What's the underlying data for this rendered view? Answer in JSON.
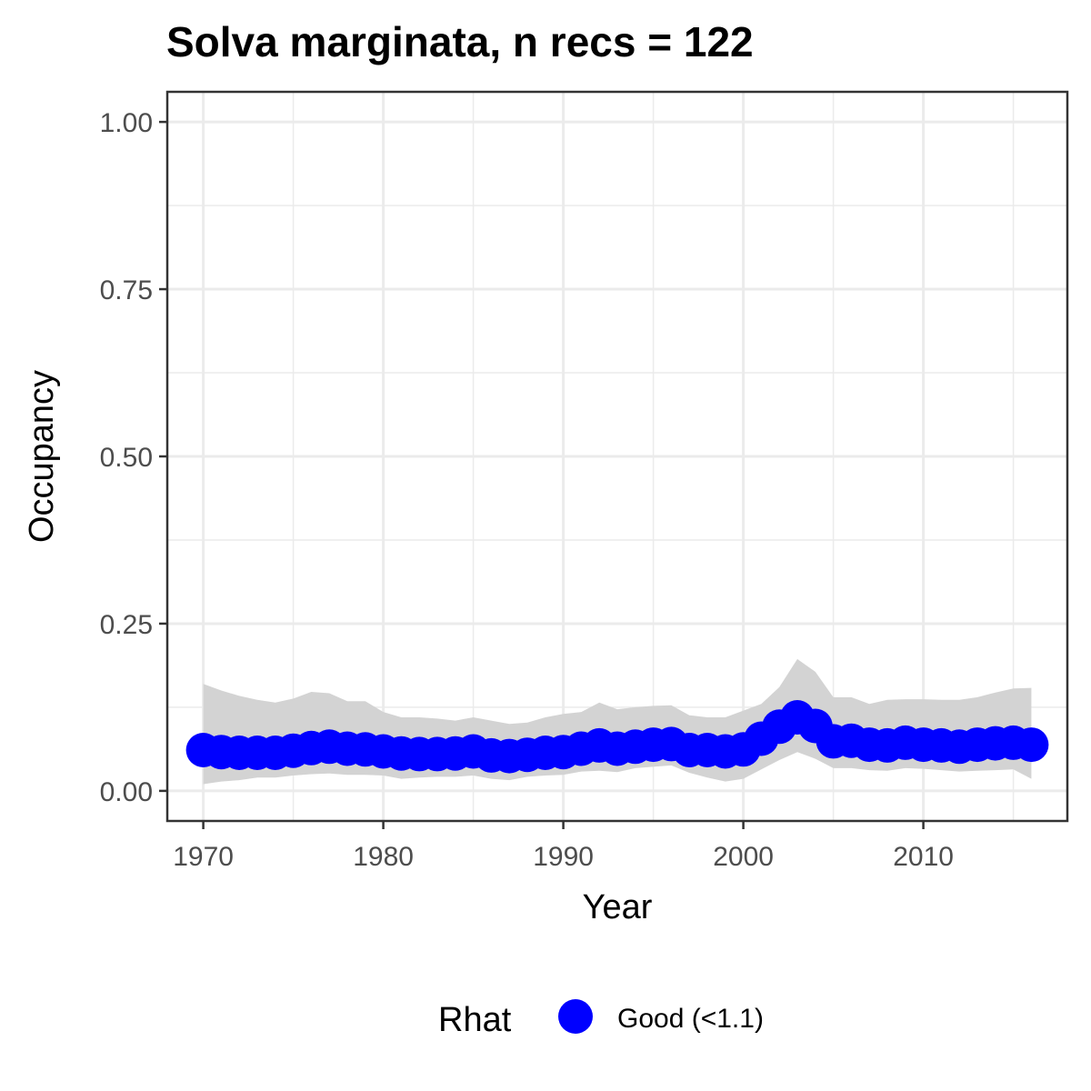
{
  "chart_data": {
    "type": "line",
    "title": "Solva marginata, n recs = 122",
    "xlabel": "Year",
    "ylabel": "Occupancy",
    "xlim": [
      1968,
      2018
    ],
    "ylim": [
      -0.045,
      1.045
    ],
    "x_ticks": [
      1970,
      1980,
      1990,
      2000,
      2010
    ],
    "x_tick_labels": [
      "1970",
      "1980",
      "1990",
      "2000",
      "2010"
    ],
    "y_ticks": [
      0,
      0.25,
      0.5,
      0.75,
      1.0
    ],
    "y_tick_labels": [
      "0.00",
      "0.25",
      "0.50",
      "0.75",
      "1.00"
    ],
    "grid": true,
    "legend": {
      "title": "Rhat",
      "position": "bottom",
      "entries": [
        {
          "label": "Good (<1.1)",
          "color": "#0000ff"
        }
      ]
    },
    "colors": {
      "points": "#0000ff",
      "ribbon": "#d3d3d3",
      "panel_border": "#333333",
      "grid": "#ebebeb"
    },
    "series": [
      {
        "name": "Occupancy",
        "x": [
          1970,
          1971,
          1972,
          1973,
          1974,
          1975,
          1976,
          1977,
          1978,
          1979,
          1980,
          1981,
          1982,
          1983,
          1984,
          1985,
          1986,
          1987,
          1988,
          1989,
          1990,
          1991,
          1992,
          1993,
          1994,
          1995,
          1996,
          1997,
          1998,
          1999,
          2000,
          2001,
          2002,
          2003,
          2004,
          2005,
          2006,
          2007,
          2008,
          2009,
          2010,
          2011,
          2012,
          2013,
          2014,
          2015,
          2016
        ],
        "mean": [
          0.061,
          0.058,
          0.057,
          0.057,
          0.057,
          0.06,
          0.064,
          0.066,
          0.063,
          0.062,
          0.059,
          0.056,
          0.055,
          0.055,
          0.056,
          0.059,
          0.053,
          0.052,
          0.054,
          0.057,
          0.058,
          0.063,
          0.068,
          0.063,
          0.066,
          0.069,
          0.07,
          0.061,
          0.061,
          0.059,
          0.062,
          0.078,
          0.096,
          0.11,
          0.097,
          0.074,
          0.075,
          0.069,
          0.068,
          0.072,
          0.069,
          0.068,
          0.066,
          0.069,
          0.071,
          0.072,
          0.069
        ],
        "lower": [
          0.01,
          0.014,
          0.016,
          0.02,
          0.02,
          0.023,
          0.025,
          0.026,
          0.024,
          0.024,
          0.023,
          0.018,
          0.02,
          0.021,
          0.021,
          0.023,
          0.018,
          0.016,
          0.021,
          0.023,
          0.024,
          0.029,
          0.03,
          0.028,
          0.034,
          0.036,
          0.038,
          0.027,
          0.02,
          0.014,
          0.018,
          0.032,
          0.046,
          0.058,
          0.048,
          0.034,
          0.034,
          0.031,
          0.03,
          0.034,
          0.033,
          0.031,
          0.029,
          0.03,
          0.031,
          0.032,
          0.018
        ],
        "upper": [
          0.16,
          0.15,
          0.142,
          0.136,
          0.132,
          0.138,
          0.148,
          0.146,
          0.134,
          0.134,
          0.118,
          0.11,
          0.11,
          0.108,
          0.105,
          0.11,
          0.105,
          0.1,
          0.102,
          0.11,
          0.115,
          0.118,
          0.132,
          0.122,
          0.125,
          0.127,
          0.128,
          0.113,
          0.11,
          0.11,
          0.12,
          0.13,
          0.155,
          0.197,
          0.178,
          0.14,
          0.14,
          0.13,
          0.136,
          0.137,
          0.137,
          0.136,
          0.136,
          0.14,
          0.147,
          0.153,
          0.154
        ]
      }
    ]
  }
}
